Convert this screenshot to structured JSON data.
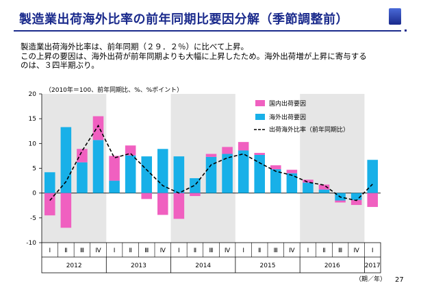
{
  "slide": {
    "title": "製造業出荷海外比率の前年同期比要因分解（季節調整前）",
    "page_number": "27"
  },
  "summary": {
    "lines": [
      "製造業出荷海外比率は、前年同期（２９．２％）に比べて上昇。",
      "この上昇の要因は、海外出荷が前年同期よりも大幅に上昇したため。海外出荷増が上昇に寄与する",
      "のは、３四半期ぶり。"
    ]
  },
  "chart_data": {
    "type": "bar",
    "subtype": "stacked-bar-with-line",
    "unit_note": "（2010年＝100、前年同期比、%、%ポイント）",
    "ylim": [
      -10,
      20
    ],
    "yticks": [
      -10,
      -5,
      0,
      5,
      10,
      15,
      20
    ],
    "quarter_labels": [
      "Ⅰ",
      "Ⅱ",
      "Ⅲ",
      "Ⅳ",
      "Ⅰ",
      "Ⅱ",
      "Ⅲ",
      "Ⅳ",
      "Ⅰ",
      "Ⅱ",
      "Ⅲ",
      "Ⅳ",
      "Ⅰ",
      "Ⅱ",
      "Ⅲ",
      "Ⅳ",
      "Ⅰ",
      "Ⅱ",
      "Ⅲ",
      "Ⅳ",
      "Ⅰ"
    ],
    "years": [
      {
        "label": "2012",
        "count": 4,
        "shaded": true
      },
      {
        "label": "2013",
        "count": 4,
        "shaded": false
      },
      {
        "label": "2014",
        "count": 4,
        "shaded": true
      },
      {
        "label": "2015",
        "count": 4,
        "shaded": false
      },
      {
        "label": "2016",
        "count": 4,
        "shaded": true
      },
      {
        "label": "2017",
        "count": 1,
        "shaded": false
      }
    ],
    "x_unit_label": "（期／年）",
    "legend_position": "top-right",
    "series": [
      {
        "name": "国内出荷要因",
        "color": "#f060c0",
        "values": [
          -4.5,
          -7.0,
          2.7,
          4.8,
          5.0,
          2.0,
          -1.2,
          -4.4,
          -5.2,
          -0.6,
          0.6,
          1.4,
          1.7,
          0.4,
          0.8,
          0.7,
          0.6,
          1.0,
          -0.4,
          -1.0,
          -2.8
        ]
      },
      {
        "name": "海外出荷要因",
        "color": "#18b0e8",
        "values": [
          4.2,
          13.3,
          6.2,
          10.7,
          2.5,
          7.6,
          7.4,
          8.9,
          7.4,
          3.0,
          7.3,
          7.9,
          8.6,
          7.7,
          4.8,
          4.0,
          2.1,
          0.7,
          -1.5,
          -1.4,
          6.7
        ]
      },
      {
        "name": "出荷海外比率（前年同期比）",
        "type": "line",
        "style": "dashed",
        "color": "#000000",
        "values": [
          -1.5,
          2.3,
          8.5,
          13.6,
          7.1,
          8.0,
          4.7,
          1.5,
          0.0,
          1.6,
          5.7,
          7.1,
          7.9,
          6.1,
          4.4,
          3.6,
          2.2,
          1.6,
          -0.8,
          -1.5,
          1.8
        ]
      }
    ]
  }
}
